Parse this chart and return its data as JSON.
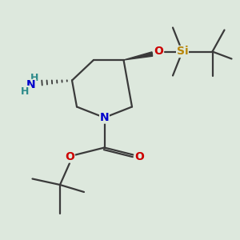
{
  "bg_color": "#dde8dd",
  "atom_colors": {
    "C": "#404040",
    "N": "#0000cc",
    "O": "#cc0000",
    "Si": "#b8860b",
    "H": "#2e8b8b"
  },
  "bond_color": "#3a3a3a",
  "figsize": [
    3.0,
    3.0
  ],
  "dpi": 100
}
